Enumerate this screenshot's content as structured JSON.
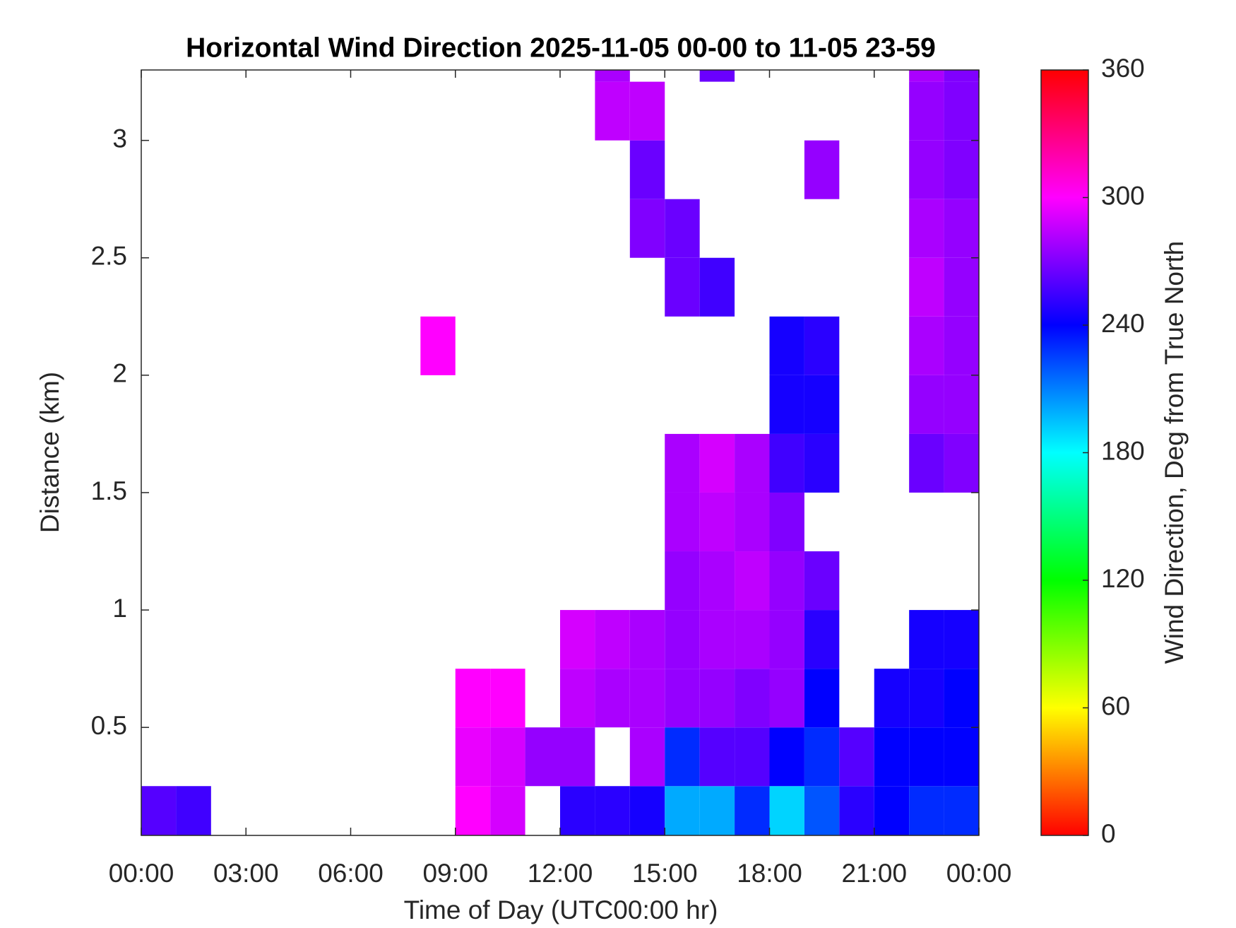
{
  "chart_data": {
    "type": "heatmap",
    "title": "Horizontal Wind Direction 2025-11-05 00-00 to 11-05 23-59",
    "x_label": "Time of Day (UTC00:00 hr)",
    "y_label": "Distance (km)",
    "colorbar_label": "Wind Direction, Deg from True North",
    "colormap": "hsv",
    "xlim": [
      0,
      24
    ],
    "ylim": [
      0.04,
      3.3
    ],
    "clim": [
      0,
      360
    ],
    "xticks": [
      {
        "value": 0,
        "label": "00:00"
      },
      {
        "value": 3,
        "label": "03:00"
      },
      {
        "value": 6,
        "label": "06:00"
      },
      {
        "value": 9,
        "label": "09:00"
      },
      {
        "value": 12,
        "label": "12:00"
      },
      {
        "value": 15,
        "label": "15:00"
      },
      {
        "value": 18,
        "label": "18:00"
      },
      {
        "value": 21,
        "label": "21:00"
      },
      {
        "value": 24,
        "label": "00:00"
      }
    ],
    "yticks": [
      0.5,
      1,
      1.5,
      2,
      2.5,
      3
    ],
    "cticks": [
      0,
      60,
      120,
      180,
      240,
      300,
      360
    ],
    "xbins": [
      0,
      1,
      2,
      3,
      4,
      5,
      6,
      7,
      8,
      9,
      10,
      11,
      12,
      13,
      14,
      15,
      16,
      17,
      18,
      19,
      20,
      21,
      22,
      23,
      24
    ],
    "ybins": [
      0.04,
      0.25,
      0.5,
      0.75,
      1,
      1.25,
      1.5,
      1.75,
      2,
      2.25,
      2.5,
      2.75,
      3,
      3.25,
      3.3
    ],
    "values": [
      [
        260,
        255,
        null,
        null,
        null,
        null,
        null,
        null,
        null,
        300,
        290,
        null,
        250,
        250,
        245,
        200,
        200,
        230,
        190,
        220,
        250,
        240,
        230,
        230
      ],
      [
        null,
        null,
        null,
        null,
        null,
        null,
        null,
        null,
        null,
        295,
        290,
        275,
        275,
        null,
        280,
        230,
        260,
        260,
        240,
        230,
        260,
        240,
        240,
        240
      ],
      [
        null,
        null,
        null,
        null,
        null,
        null,
        null,
        null,
        null,
        300,
        300,
        null,
        285,
        280,
        280,
        275,
        275,
        270,
        275,
        240,
        null,
        245,
        245,
        240
      ],
      [
        null,
        null,
        null,
        null,
        null,
        null,
        null,
        null,
        null,
        null,
        null,
        null,
        290,
        285,
        280,
        275,
        280,
        280,
        275,
        250,
        null,
        null,
        245,
        245
      ],
      [
        null,
        null,
        null,
        null,
        null,
        null,
        null,
        null,
        null,
        null,
        null,
        null,
        null,
        null,
        null,
        275,
        280,
        285,
        275,
        265,
        null,
        null,
        null,
        null
      ],
      [
        null,
        null,
        null,
        null,
        null,
        null,
        null,
        null,
        null,
        null,
        null,
        null,
        null,
        null,
        null,
        280,
        285,
        280,
        270,
        null,
        null,
        null,
        null,
        null
      ],
      [
        null,
        null,
        null,
        null,
        null,
        null,
        null,
        null,
        null,
        null,
        null,
        null,
        null,
        null,
        null,
        280,
        290,
        280,
        255,
        250,
        null,
        null,
        265,
        270
      ],
      [
        null,
        null,
        null,
        null,
        null,
        null,
        null,
        null,
        null,
        null,
        null,
        null,
        null,
        null,
        null,
        null,
        null,
        null,
        245,
        245,
        null,
        null,
        275,
        275
      ],
      [
        null,
        null,
        null,
        null,
        null,
        null,
        null,
        null,
        300,
        null,
        null,
        null,
        null,
        null,
        null,
        null,
        null,
        null,
        245,
        250,
        null,
        null,
        280,
        275
      ],
      [
        null,
        null,
        null,
        null,
        null,
        null,
        null,
        null,
        null,
        null,
        null,
        null,
        null,
        null,
        null,
        265,
        255,
        null,
        null,
        null,
        null,
        null,
        285,
        275
      ],
      [
        null,
        null,
        null,
        null,
        null,
        null,
        null,
        null,
        null,
        null,
        null,
        null,
        null,
        null,
        270,
        265,
        null,
        null,
        null,
        null,
        null,
        null,
        280,
        275
      ],
      [
        null,
        null,
        null,
        null,
        null,
        null,
        null,
        null,
        null,
        null,
        null,
        null,
        null,
        null,
        265,
        null,
        null,
        null,
        null,
        275,
        null,
        null,
        275,
        270
      ],
      [
        null,
        null,
        null,
        null,
        null,
        null,
        null,
        null,
        null,
        null,
        null,
        null,
        null,
        285,
        285,
        null,
        null,
        null,
        null,
        null,
        null,
        null,
        275,
        270
      ],
      [
        null,
        null,
        null,
        null,
        null,
        null,
        null,
        null,
        null,
        null,
        null,
        null,
        null,
        280,
        null,
        null,
        265,
        null,
        null,
        null,
        null,
        null,
        280,
        270
      ]
    ]
  }
}
